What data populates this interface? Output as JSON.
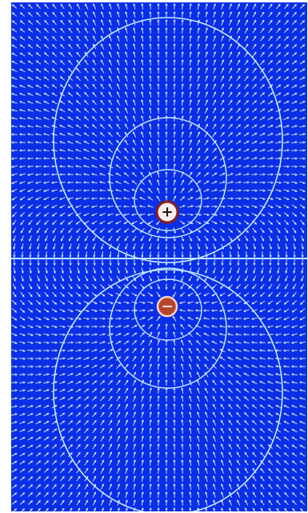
{
  "field_map": {
    "background_color": "#0a2fe6",
    "arrow_color": "#e6f0ff",
    "equipotential_color": "#bfe8ff",
    "charges": [
      {
        "name": "positive-charge",
        "symbol": "+",
        "fill": "#f4eeee",
        "ring": "#8a1e14",
        "symbol_color": "#2a1410"
      },
      {
        "name": "negative-charge",
        "symbol": "−",
        "fill": "#b8452c",
        "ring": "#f3d2c8",
        "symbol_color": "#fbe7e1"
      }
    ]
  }
}
